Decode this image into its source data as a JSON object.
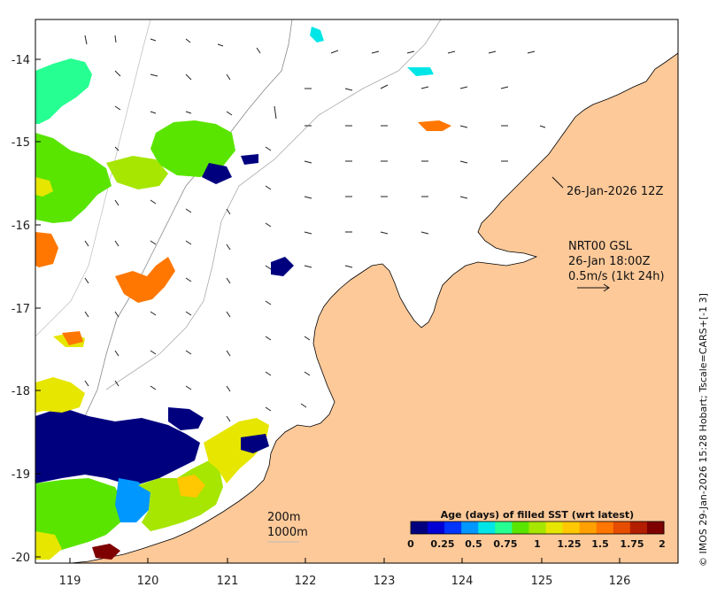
{
  "map": {
    "lon_ticks": [
      "119",
      "120",
      "121",
      "122",
      "123",
      "124",
      "125",
      "126"
    ],
    "lat_ticks": [
      "-14",
      "-15",
      "-16",
      "-17",
      "-18",
      "-19",
      "-20"
    ],
    "lon_range": [
      118.6,
      126.7
    ],
    "lat_range": [
      -20.1,
      -13.6
    ]
  },
  "annotations": {
    "time_label": "26-Jan-2026 12Z",
    "product": "NRT00 GSL",
    "product_time": "26-Jan 18:00Z",
    "vector_scale": "0.5m/s (1kt 24h)",
    "isobath_200": "200m",
    "isobath_1000": "1000m"
  },
  "colorbar": {
    "title": "Age (days) of filled SST (wrt latest)",
    "ticks": [
      "0",
      "0.25",
      "0.5",
      "0.75",
      "1",
      "1.25",
      "1.5",
      "1.75",
      "2"
    ],
    "colors": [
      "#00007f",
      "#0000d5",
      "#0035ff",
      "#0097ff",
      "#00e6e6",
      "#26ff91",
      "#5ae500",
      "#a6e600",
      "#e6e600",
      "#ffc800",
      "#ffa000",
      "#ff7700",
      "#e64d00",
      "#b41e00",
      "#7f0000"
    ]
  },
  "credit": "© IMOS 29-Jan-2026 15:28 Hobart; Tscale=CARS+[-1 3]",
  "colors": {
    "land": "#fdc999",
    "ocean": "#ffffff",
    "coast_outline": "#000000"
  }
}
